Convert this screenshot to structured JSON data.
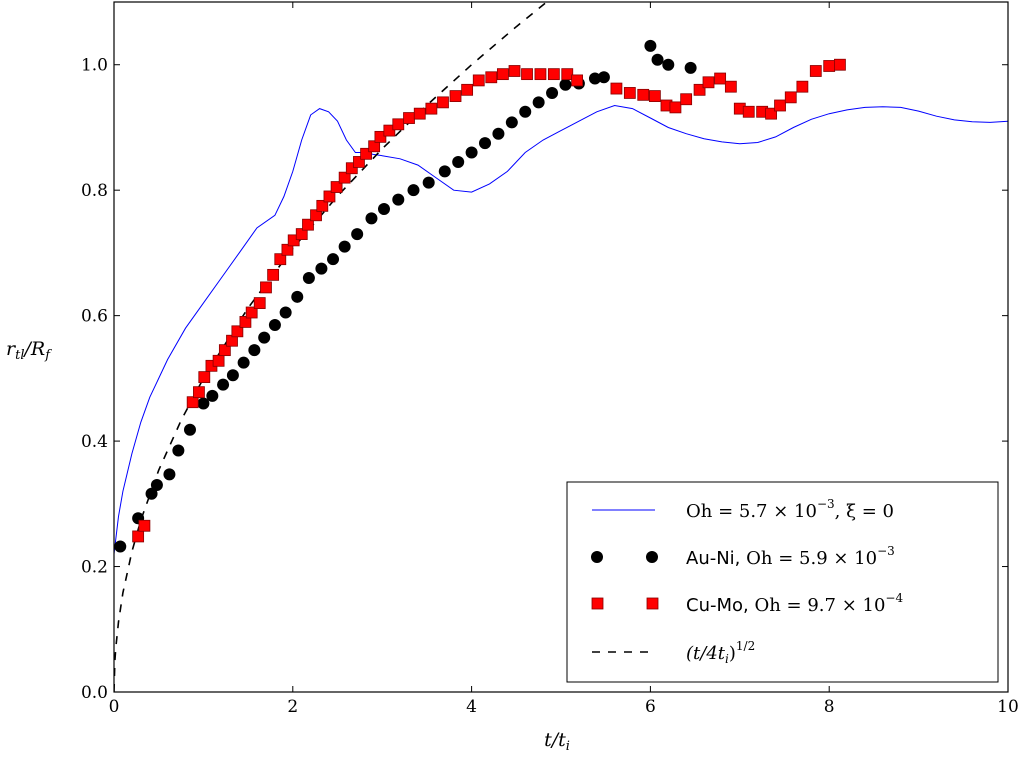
{
  "chart_data": {
    "type": "line",
    "title": "",
    "xlabel": "t/t",
    "xlabel_sub": "i",
    "ylabel": "r",
    "ylabel_sub": "tl",
    "ylabel_denom": "/R",
    "ylabel_denom_sub": "f",
    "xlim": [
      0,
      10
    ],
    "ylim": [
      0,
      1.1
    ],
    "xticks": [
      0,
      2,
      4,
      6,
      8,
      10
    ],
    "yticks": [
      0.0,
      0.2,
      0.4,
      0.6,
      0.8,
      1.0
    ],
    "xtick_labels": [
      "0",
      "2",
      "4",
      "6",
      "8",
      "10"
    ],
    "ytick_labels": [
      "0.0",
      "0.2",
      "0.4",
      "0.6",
      "0.8",
      "1.0"
    ],
    "grid": false,
    "legend_position": "bottom-right",
    "series": [
      {
        "name": "Oh = 5.7 × 10⁻³, ξ = 0",
        "style": "line",
        "color": "#0000ff",
        "x": [
          0.0,
          0.05,
          0.1,
          0.2,
          0.3,
          0.4,
          0.5,
          0.6,
          0.8,
          1.0,
          1.2,
          1.4,
          1.6,
          1.8,
          1.9,
          2.0,
          2.1,
          2.2,
          2.3,
          2.4,
          2.5,
          2.6,
          2.7,
          2.8,
          2.9,
          3.0,
          3.2,
          3.4,
          3.6,
          3.8,
          4.0,
          4.2,
          4.4,
          4.6,
          4.8,
          5.0,
          5.2,
          5.4,
          5.6,
          5.8,
          6.0,
          6.2,
          6.4,
          6.6,
          6.8,
          7.0,
          7.2,
          7.4,
          7.6,
          7.8,
          8.0,
          8.2,
          8.4,
          8.6,
          8.8,
          9.0,
          9.2,
          9.4,
          9.6,
          9.8,
          10.0
        ],
        "y": [
          0.22,
          0.28,
          0.32,
          0.38,
          0.43,
          0.47,
          0.5,
          0.53,
          0.58,
          0.62,
          0.66,
          0.7,
          0.74,
          0.76,
          0.79,
          0.83,
          0.88,
          0.92,
          0.93,
          0.925,
          0.91,
          0.88,
          0.86,
          0.86,
          0.857,
          0.855,
          0.85,
          0.84,
          0.82,
          0.8,
          0.797,
          0.81,
          0.83,
          0.86,
          0.88,
          0.895,
          0.91,
          0.925,
          0.935,
          0.93,
          0.915,
          0.9,
          0.89,
          0.882,
          0.877,
          0.874,
          0.876,
          0.885,
          0.9,
          0.913,
          0.922,
          0.928,
          0.932,
          0.933,
          0.932,
          0.926,
          0.918,
          0.912,
          0.909,
          0.908,
          0.91
        ]
      },
      {
        "name": "Au-Ni, Oh = 5.9 × 10⁻³",
        "style": "marker-circle",
        "color": "#000000",
        "x": [
          0.07,
          0.27,
          0.42,
          0.48,
          0.62,
          0.72,
          0.85,
          1.0,
          1.1,
          1.22,
          1.33,
          1.45,
          1.57,
          1.68,
          1.8,
          1.92,
          2.05,
          2.18,
          2.32,
          2.45,
          2.58,
          2.72,
          2.88,
          3.02,
          3.18,
          3.35,
          3.52,
          3.7,
          3.85,
          4.0,
          4.15,
          4.3,
          4.45,
          4.6,
          4.75,
          4.9,
          5.05,
          5.2,
          5.38,
          5.48,
          6.0,
          6.08,
          6.2,
          6.45
        ],
        "y": [
          0.232,
          0.277,
          0.316,
          0.33,
          0.347,
          0.385,
          0.418,
          0.46,
          0.472,
          0.49,
          0.505,
          0.525,
          0.545,
          0.565,
          0.585,
          0.605,
          0.63,
          0.66,
          0.675,
          0.69,
          0.71,
          0.73,
          0.755,
          0.77,
          0.785,
          0.8,
          0.812,
          0.83,
          0.845,
          0.86,
          0.875,
          0.89,
          0.908,
          0.925,
          0.94,
          0.955,
          0.968,
          0.97,
          0.978,
          0.98,
          1.03,
          1.008,
          1.0,
          0.995
        ]
      },
      {
        "name": "Cu-Mo, Oh = 9.7 × 10⁻⁴",
        "style": "marker-square",
        "color": "#ff0000",
        "x": [
          0.27,
          0.34,
          0.88,
          0.95,
          1.01,
          1.09,
          1.17,
          1.24,
          1.32,
          1.38,
          1.47,
          1.54,
          1.63,
          1.7,
          1.78,
          1.86,
          1.94,
          2.01,
          2.1,
          2.17,
          2.26,
          2.33,
          2.41,
          2.49,
          2.58,
          2.66,
          2.74,
          2.82,
          2.91,
          2.98,
          3.08,
          3.18,
          3.3,
          3.42,
          3.55,
          3.68,
          3.82,
          3.95,
          4.08,
          4.22,
          4.35,
          4.48,
          4.62,
          4.77,
          4.92,
          5.07,
          5.18,
          5.62,
          5.77,
          5.92,
          6.05,
          6.18,
          6.28,
          6.4,
          6.55,
          6.65,
          6.78,
          6.9,
          7.0,
          7.1,
          7.25,
          7.35,
          7.45,
          7.57,
          7.7,
          7.85,
          8.0,
          8.12
        ],
        "y": [
          0.248,
          0.265,
          0.462,
          0.478,
          0.502,
          0.52,
          0.528,
          0.545,
          0.56,
          0.575,
          0.59,
          0.605,
          0.62,
          0.645,
          0.665,
          0.69,
          0.705,
          0.72,
          0.73,
          0.745,
          0.76,
          0.775,
          0.79,
          0.805,
          0.82,
          0.835,
          0.845,
          0.858,
          0.87,
          0.885,
          0.895,
          0.905,
          0.915,
          0.922,
          0.93,
          0.94,
          0.95,
          0.96,
          0.975,
          0.98,
          0.985,
          0.99,
          0.985,
          0.985,
          0.985,
          0.985,
          0.975,
          0.962,
          0.955,
          0.952,
          0.95,
          0.935,
          0.932,
          0.945,
          0.96,
          0.972,
          0.978,
          0.965,
          0.93,
          0.925,
          0.925,
          0.922,
          0.935,
          0.948,
          0.965,
          0.99,
          0.998,
          1.0
        ]
      },
      {
        "name": "(t/4tᵢ)^(1/2)",
        "style": "dashed",
        "color": "#000000",
        "formula": "y = sqrt(x/4)",
        "x": [
          0.0,
          0.01,
          0.02,
          0.05,
          0.1,
          0.2,
          0.3,
          0.5,
          0.75,
          1.0,
          1.5,
          2.0,
          2.5,
          3.0,
          3.5,
          4.0,
          4.5,
          4.84
        ],
        "y": [
          0.0,
          0.05,
          0.0707,
          0.1118,
          0.1581,
          0.2236,
          0.2739,
          0.3536,
          0.433,
          0.5,
          0.6124,
          0.7071,
          0.7906,
          0.866,
          0.9354,
          1.0,
          1.0607,
          1.1
        ]
      }
    ],
    "legend": {
      "entries": [
        {
          "pre": "",
          "math": "Oh = 5.7 × 10",
          "sup": "−3",
          "post": ", ξ = 0"
        },
        {
          "pre": "Au-Ni, ",
          "math": "Oh = 5.9 × 10",
          "sup": "−3",
          "post": ""
        },
        {
          "pre": "Cu-Mo, ",
          "math": "Oh = 9.7 × 10",
          "sup": "−4",
          "post": ""
        },
        {
          "pre": "",
          "math": "(t/4t",
          "sub": "i",
          "math2": ")",
          "sup": "1/2",
          "post": ""
        }
      ]
    }
  }
}
